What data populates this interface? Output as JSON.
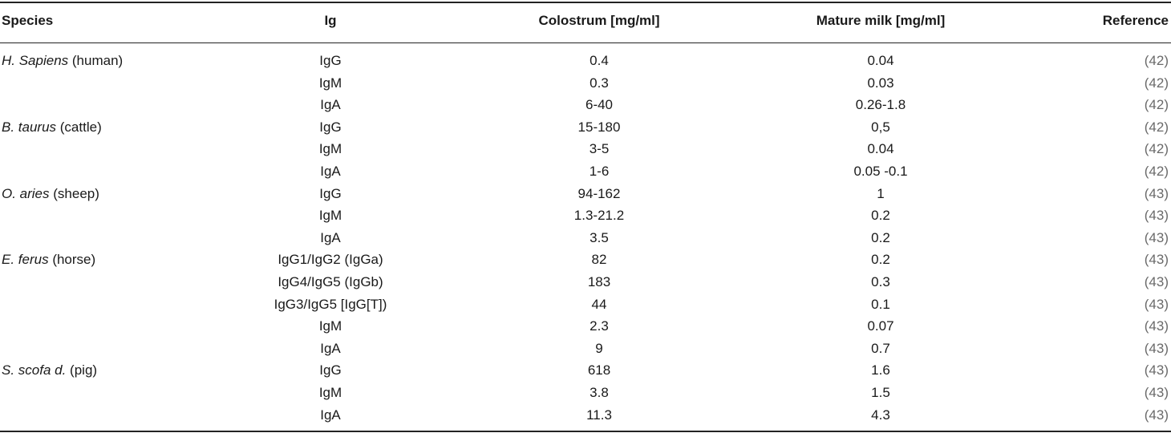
{
  "headers": {
    "species": "Species",
    "ig": "Ig",
    "colostrum": "Colostrum [mg/ml]",
    "mature_milk": "Mature milk [mg/ml]",
    "reference": "Reference"
  },
  "rows": [
    {
      "species_italic": "H. Sapiens",
      "species_common": " (human)",
      "ig": "IgG",
      "colostrum": "0.4",
      "mature": "0.04",
      "ref": "(42)"
    },
    {
      "species_italic": "",
      "species_common": "",
      "ig": "IgM",
      "colostrum": "0.3",
      "mature": "0.03",
      "ref": "(42)"
    },
    {
      "species_italic": "",
      "species_common": "",
      "ig": "IgA",
      "colostrum": "6-40",
      "mature": "0.26-1.8",
      "ref": "(42)"
    },
    {
      "species_italic": "B. taurus",
      "species_common": " (cattle)",
      "ig": "IgG",
      "colostrum": "15-180",
      "mature": "0,5",
      "ref": "(42)"
    },
    {
      "species_italic": "",
      "species_common": "",
      "ig": "IgM",
      "colostrum": "3-5",
      "mature": "0.04",
      "ref": "(42)"
    },
    {
      "species_italic": "",
      "species_common": "",
      "ig": "IgA",
      "colostrum": "1-6",
      "mature": "0.05 -0.1",
      "ref": "(42)"
    },
    {
      "species_italic": "O. aries",
      "species_common": " (sheep)",
      "ig": "IgG",
      "colostrum": "94-162",
      "mature": "1",
      "ref": "(43)"
    },
    {
      "species_italic": "",
      "species_common": "",
      "ig": "IgM",
      "colostrum": "1.3-21.2",
      "mature": "0.2",
      "ref": "(43)"
    },
    {
      "species_italic": "",
      "species_common": "",
      "ig": "IgA",
      "colostrum": "3.5",
      "mature": "0.2",
      "ref": "(43)"
    },
    {
      "species_italic": "E. ferus",
      "species_common": " (horse)",
      "ig": "IgG1/IgG2 (IgGa)",
      "colostrum": "82",
      "mature": "0.2",
      "ref": "(43)"
    },
    {
      "species_italic": "",
      "species_common": "",
      "ig": "IgG4/IgG5 (IgGb)",
      "colostrum": "183",
      "mature": "0.3",
      "ref": "(43)"
    },
    {
      "species_italic": "",
      "species_common": "",
      "ig": "IgG3/IgG5 [IgG[T])",
      "colostrum": "44",
      "mature": "0.1",
      "ref": "(43)"
    },
    {
      "species_italic": "",
      "species_common": "",
      "ig": "IgM",
      "colostrum": "2.3",
      "mature": "0.07",
      "ref": "(43)"
    },
    {
      "species_italic": "",
      "species_common": "",
      "ig": "IgA",
      "colostrum": "9",
      "mature": "0.7",
      "ref": "(43)"
    },
    {
      "species_italic": "S. scofa d.",
      "species_common": " (pig)",
      "ig": "IgG",
      "colostrum": "618",
      "mature": "1.6",
      "ref": "(43)"
    },
    {
      "species_italic": "",
      "species_common": "",
      "ig": "IgM",
      "colostrum": "3.8",
      "mature": "1.5",
      "ref": "(43)"
    },
    {
      "species_italic": "",
      "species_common": "",
      "ig": "IgA",
      "colostrum": "11.3",
      "mature": "4.3",
      "ref": "(43)"
    }
  ]
}
